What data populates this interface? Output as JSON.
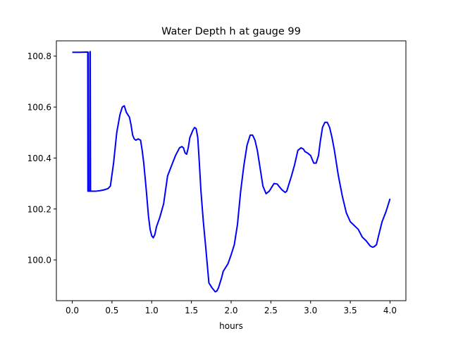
{
  "chart_data": {
    "type": "line",
    "title": "Water Depth h at gauge 99",
    "xlabel": "hours",
    "ylabel": "",
    "xlim": [
      -0.2,
      4.2
    ],
    "ylim": [
      99.84,
      100.86
    ],
    "x_ticks": [
      0.0,
      0.5,
      1.0,
      1.5,
      2.0,
      2.5,
      3.0,
      3.5,
      4.0
    ],
    "x_tick_labels": [
      "0.0",
      "0.5",
      "1.0",
      "1.5",
      "2.0",
      "2.5",
      "3.0",
      "3.5",
      "4.0"
    ],
    "y_ticks": [
      100.0,
      100.2,
      100.4,
      100.6,
      100.8
    ],
    "y_tick_labels": [
      "100.0",
      "100.2",
      "100.4",
      "100.6",
      "100.8"
    ],
    "grid": false,
    "line_color": "#0000ff",
    "series": [
      {
        "x": [
          0.0,
          0.1,
          0.195,
          0.197,
          0.2,
          0.203,
          0.205,
          0.21,
          0.215,
          0.22,
          0.224,
          0.226,
          0.23,
          0.25,
          0.3,
          0.35,
          0.4,
          0.45,
          0.48,
          0.52,
          0.56,
          0.6,
          0.63,
          0.655,
          0.68,
          0.7,
          0.72,
          0.74,
          0.76,
          0.78,
          0.8,
          0.83,
          0.86,
          0.88,
          0.9,
          0.93,
          0.96,
          0.98,
          1.0,
          1.02,
          1.04,
          1.06,
          1.1,
          1.15,
          1.2,
          1.25,
          1.3,
          1.35,
          1.38,
          1.4,
          1.42,
          1.44,
          1.46,
          1.48,
          1.5,
          1.52,
          1.54,
          1.56,
          1.58,
          1.6,
          1.62,
          1.65,
          1.68,
          1.72,
          1.76,
          1.8,
          1.82,
          1.84,
          1.86,
          1.88,
          1.9,
          1.93,
          1.96,
          2.0,
          2.04,
          2.08,
          2.12,
          2.16,
          2.2,
          2.24,
          2.27,
          2.3,
          2.33,
          2.36,
          2.4,
          2.44,
          2.48,
          2.5,
          2.54,
          2.58,
          2.6,
          2.64,
          2.68,
          2.7,
          2.72,
          2.74,
          2.76,
          2.8,
          2.84,
          2.88,
          2.91,
          2.93,
          2.96,
          3.0,
          3.02,
          3.04,
          3.07,
          3.1,
          3.12,
          3.15,
          3.18,
          3.21,
          3.24,
          3.27,
          3.3,
          3.35,
          3.4,
          3.45,
          3.5,
          3.55,
          3.6,
          3.65,
          3.7,
          3.75,
          3.78,
          3.8,
          3.83,
          3.86,
          3.9,
          3.95,
          4.0
        ],
        "y": [
          100.815,
          100.815,
          100.816,
          100.27,
          100.27,
          100.815,
          100.27,
          100.27,
          100.27,
          100.27,
          100.27,
          100.818,
          100.27,
          100.27,
          100.27,
          100.272,
          100.275,
          100.28,
          100.29,
          100.38,
          100.5,
          100.57,
          100.6,
          100.605,
          100.58,
          100.57,
          100.56,
          100.53,
          100.49,
          100.475,
          100.47,
          100.475,
          100.47,
          100.43,
          100.38,
          100.28,
          100.17,
          100.12,
          100.095,
          100.087,
          100.1,
          100.13,
          100.165,
          100.22,
          100.33,
          100.37,
          100.41,
          100.44,
          100.445,
          100.44,
          100.42,
          100.415,
          100.44,
          100.48,
          100.495,
          100.51,
          100.52,
          100.515,
          100.48,
          100.38,
          100.27,
          100.15,
          100.05,
          99.91,
          99.89,
          99.875,
          99.878,
          99.89,
          99.91,
          99.93,
          99.955,
          99.97,
          99.985,
          100.02,
          100.06,
          100.14,
          100.27,
          100.37,
          100.45,
          100.49,
          100.49,
          100.47,
          100.43,
          100.37,
          100.29,
          100.26,
          100.27,
          100.28,
          100.3,
          100.298,
          100.29,
          100.275,
          100.265,
          100.27,
          100.29,
          100.31,
          100.33,
          100.375,
          100.43,
          100.44,
          100.435,
          100.425,
          100.42,
          100.41,
          100.395,
          100.38,
          100.38,
          100.41,
          100.46,
          100.52,
          100.54,
          100.54,
          100.52,
          100.48,
          100.43,
          100.33,
          100.25,
          100.185,
          100.15,
          100.135,
          100.12,
          100.09,
          100.075,
          100.055,
          100.05,
          100.052,
          100.06,
          100.1,
          100.15,
          100.19,
          100.24
        ]
      }
    ]
  }
}
